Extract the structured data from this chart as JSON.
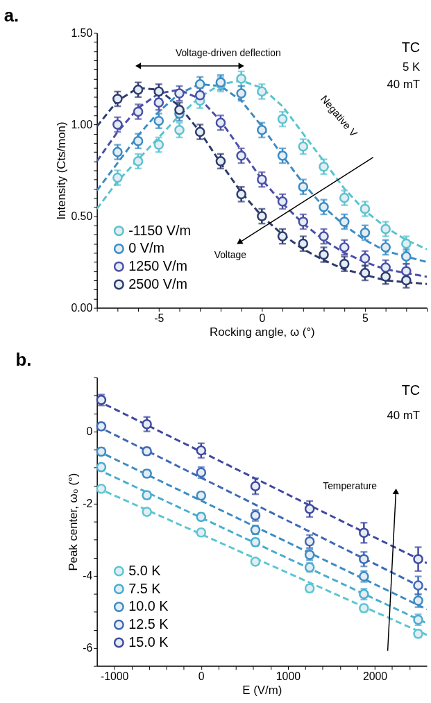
{
  "chart_data": [
    {
      "type": "scatter",
      "title": "a.",
      "xlabel": "Rocking angle, ω (°)",
      "ylabel": "Intensity (Cts/mon)",
      "xlim": [
        -8,
        8
      ],
      "ylim": [
        0,
        1.5
      ],
      "xticks": [
        {
          "value": -8,
          "label": null
        },
        {
          "value": -7,
          "label": null
        },
        {
          "value": -6,
          "label": null
        },
        -5,
        {
          "value": -4,
          "label": null
        },
        {
          "value": -3,
          "label": null
        },
        {
          "value": -2,
          "label": null
        },
        {
          "value": -1,
          "label": null
        },
        0,
        {
          "value": 1,
          "label": null
        },
        {
          "value": 2,
          "label": null
        },
        {
          "value": 3,
          "label": null
        },
        {
          "value": 4,
          "label": null
        },
        5,
        {
          "value": 6,
          "label": null
        },
        {
          "value": 7,
          "label": null
        },
        {
          "value": 8,
          "label": null
        }
      ],
      "yticks": [
        {
          "value": 0,
          "label": "0.00"
        },
        {
          "value": 0.05,
          "label": null
        },
        {
          "value": 0.1,
          "label": null
        },
        {
          "value": 0.15,
          "label": null
        },
        {
          "value": 0.2,
          "label": null
        },
        {
          "value": 0.25,
          "label": null
        },
        {
          "value": 0.3,
          "label": null
        },
        {
          "value": 0.35,
          "label": null
        },
        {
          "value": 0.4,
          "label": null
        },
        {
          "value": 0.45,
          "label": null
        },
        {
          "value": 0.5,
          "label": "0.50"
        },
        {
          "value": 0.55,
          "label": null
        },
        {
          "value": 0.6,
          "label": null
        },
        {
          "value": 0.65,
          "label": null
        },
        {
          "value": 0.7,
          "label": null
        },
        {
          "value": 0.75,
          "label": null
        },
        {
          "value": 0.8,
          "label": null
        },
        {
          "value": 0.85,
          "label": null
        },
        {
          "value": 0.9,
          "label": null
        },
        {
          "value": 0.95,
          "label": null
        },
        {
          "value": 1.0,
          "label": "1.00"
        },
        {
          "value": 1.05,
          "label": null
        },
        {
          "value": 1.1,
          "label": null
        },
        {
          "value": 1.15,
          "label": null
        },
        {
          "value": 1.2,
          "label": null
        },
        {
          "value": 1.25,
          "label": null
        },
        {
          "value": 1.3,
          "label": null
        },
        {
          "value": 1.35,
          "label": null
        },
        {
          "value": 1.4,
          "label": null
        },
        {
          "value": 1.45,
          "label": null
        },
        {
          "value": 1.5,
          "label": "1.50"
        }
      ],
      "grid": false,
      "legend": "bottom left",
      "marker": "circle",
      "annotations": [
        "Voltage-driven deflection",
        "TC",
        "5 K",
        "40 mT",
        "Negative V",
        "Voltage"
      ],
      "series": [
        {
          "name": "-1150 V/m",
          "color": "#5bc3cf",
          "x": [
            -7,
            -6,
            -5,
            -4,
            -3,
            -2,
            -1,
            0,
            1,
            2,
            3,
            4,
            5,
            6,
            7
          ],
          "values": [
            0.71,
            0.8,
            0.89,
            0.97,
            1.13,
            1.22,
            1.25,
            1.18,
            1.03,
            0.88,
            0.77,
            0.6,
            0.54,
            0.43,
            0.35
          ],
          "errors": [
            0.04,
            0.04,
            0.04,
            0.04,
            0.04,
            0.04,
            0.04,
            0.04,
            0.04,
            0.04,
            0.04,
            0.04,
            0.04,
            0.04,
            0.04
          ]
        },
        {
          "name": "0 V/m",
          "color": "#3b8cc4",
          "x": [
            -7,
            -6,
            -5,
            -4,
            -3,
            -2,
            -1,
            0,
            1,
            2,
            3,
            4,
            5,
            6,
            7
          ],
          "values": [
            0.85,
            0.91,
            1.02,
            1.06,
            1.22,
            1.23,
            1.17,
            0.97,
            0.83,
            0.66,
            0.55,
            0.47,
            0.41,
            0.33,
            0.28
          ],
          "errors": [
            0.04,
            0.04,
            0.04,
            0.04,
            0.04,
            0.04,
            0.04,
            0.04,
            0.04,
            0.04,
            0.04,
            0.04,
            0.04,
            0.04,
            0.04
          ]
        },
        {
          "name": "1250 V/m",
          "color": "#4a50a8",
          "x": [
            -7,
            -6,
            -5,
            -4,
            -3,
            -2,
            -1,
            0,
            1,
            2,
            3,
            4,
            5,
            6,
            7
          ],
          "values": [
            1.0,
            1.07,
            1.12,
            1.17,
            1.16,
            1.01,
            0.83,
            0.7,
            0.58,
            0.47,
            0.39,
            0.33,
            0.27,
            0.22,
            0.2
          ],
          "errors": [
            0.04,
            0.04,
            0.04,
            0.04,
            0.04,
            0.04,
            0.04,
            0.04,
            0.04,
            0.04,
            0.04,
            0.04,
            0.04,
            0.04,
            0.04
          ]
        },
        {
          "name": "2500 V/m",
          "color": "#2d3b6e",
          "x": [
            -7,
            -6,
            -5,
            -4,
            -3,
            -2,
            -1,
            0,
            1,
            2,
            3,
            4,
            5,
            6,
            7
          ],
          "values": [
            1.14,
            1.19,
            1.18,
            1.08,
            0.96,
            0.8,
            0.62,
            0.5,
            0.39,
            0.35,
            0.29,
            0.24,
            0.19,
            0.17,
            0.15
          ],
          "errors": [
            0.04,
            0.04,
            0.04,
            0.04,
            0.04,
            0.04,
            0.04,
            0.04,
            0.04,
            0.04,
            0.04,
            0.04,
            0.04,
            0.04,
            0.04
          ]
        },
        {
          "type": "line",
          "marker": "none",
          "line_style": "dashed",
          "color": "#5bc3cf",
          "x": [
            -8,
            -7,
            -6,
            -5,
            -4,
            -3,
            -2,
            -1,
            0,
            1,
            2,
            3,
            4,
            5,
            6,
            7,
            8
          ],
          "values": [
            0.54,
            0.69,
            0.81,
            0.93,
            1.05,
            1.15,
            1.22,
            1.24,
            1.2,
            1.1,
            0.95,
            0.8,
            0.65,
            0.53,
            0.44,
            0.37,
            0.32
          ]
        },
        {
          "type": "line",
          "marker": "none",
          "line_style": "dashed",
          "color": "#3b8cc4",
          "x": [
            -8,
            -7,
            -6,
            -5,
            -4,
            -3,
            -2,
            -1,
            0,
            1,
            2,
            3,
            4,
            5,
            6,
            7,
            8
          ],
          "values": [
            0.64,
            0.79,
            0.94,
            1.07,
            1.17,
            1.22,
            1.21,
            1.13,
            0.99,
            0.83,
            0.68,
            0.55,
            0.45,
            0.37,
            0.31,
            0.28,
            0.25
          ]
        },
        {
          "type": "line",
          "marker": "none",
          "line_style": "dashed",
          "color": "#4a50a8",
          "x": [
            -8,
            -7,
            -6,
            -5,
            -4,
            -3,
            -2,
            -1,
            0,
            1,
            2,
            3,
            4,
            5,
            6,
            7,
            8
          ],
          "values": [
            0.8,
            0.96,
            1.09,
            1.17,
            1.19,
            1.14,
            1.02,
            0.86,
            0.7,
            0.57,
            0.46,
            0.37,
            0.3,
            0.25,
            0.21,
            0.19,
            0.17
          ]
        },
        {
          "type": "line",
          "marker": "none",
          "line_style": "dashed",
          "color": "#2d3b6e",
          "x": [
            -8,
            -7,
            -6,
            -5,
            -4,
            -3,
            -2,
            -1,
            0,
            1,
            2,
            3,
            4,
            5,
            6,
            7,
            8
          ],
          "values": [
            0.99,
            1.13,
            1.2,
            1.19,
            1.1,
            0.96,
            0.79,
            0.63,
            0.5,
            0.4,
            0.32,
            0.26,
            0.21,
            0.18,
            0.15,
            0.14,
            0.13
          ]
        }
      ]
    },
    {
      "type": "scatter",
      "title": "b.",
      "xlabel": "E (V/m)",
      "ylabel": "Peak center, ω₀ (°)",
      "xlim": [
        -1200,
        2600
      ],
      "ylim": [
        -6.5,
        1.5
      ],
      "xticks": [
        -1000,
        {
          "value": -800,
          "label": null
        },
        {
          "value": -600,
          "label": null
        },
        {
          "value": -400,
          "label": null
        },
        {
          "value": -200,
          "label": null
        },
        0,
        {
          "value": 200,
          "label": null
        },
        {
          "value": 400,
          "label": null
        },
        {
          "value": 600,
          "label": null
        },
        {
          "value": 800,
          "label": null
        },
        1000,
        {
          "value": 1200,
          "label": null
        },
        {
          "value": 1400,
          "label": null
        },
        {
          "value": 1600,
          "label": null
        },
        {
          "value": 1800,
          "label": null
        },
        2000,
        {
          "value": 2200,
          "label": null
        },
        {
          "value": 2400,
          "label": null
        }
      ],
      "yticks": [
        {
          "value": -6.5,
          "label": null
        },
        -6,
        {
          "value": -5.5,
          "label": null
        },
        {
          "value": -5,
          "label": null
        },
        {
          "value": -4.5,
          "label": null
        },
        -4,
        {
          "value": -3.5,
          "label": null
        },
        {
          "value": -3,
          "label": null
        },
        {
          "value": -2.5,
          "label": null
        },
        -2,
        {
          "value": -1.5,
          "label": null
        },
        {
          "value": -1,
          "label": null
        },
        {
          "value": -0.5,
          "label": null
        },
        0,
        {
          "value": 0.5,
          "label": null
        },
        {
          "value": 1,
          "label": null
        },
        {
          "value": 1.5,
          "label": null
        }
      ],
      "grid": false,
      "legend": "bottom left",
      "marker": "circle",
      "annotations": [
        "TC",
        "40 mT",
        "Temperature"
      ],
      "series": [
        {
          "name": "5.0 K",
          "color": "#5cc6d0",
          "x": [
            -1150,
            -625,
            0,
            625,
            1250,
            1875,
            2500
          ],
          "values": [
            -1.59,
            -2.23,
            -2.8,
            -3.61,
            -4.35,
            -4.9,
            -5.61
          ],
          "errors": [
            0.08,
            0.08,
            0.08,
            0.08,
            0.1,
            0.1,
            0.1
          ]
        },
        {
          "name": "7.5 K",
          "color": "#48add0",
          "x": [
            -1150,
            -625,
            0,
            625,
            1250,
            1875,
            2500
          ],
          "values": [
            -0.99,
            -1.77,
            -2.37,
            -3.07,
            -3.77,
            -4.51,
            -5.22
          ],
          "errors": [
            0.1,
            0.1,
            0.1,
            0.1,
            0.12,
            0.15,
            0.15
          ]
        },
        {
          "name": "10.0 K",
          "color": "#3d8cc4",
          "x": [
            -1150,
            -625,
            0,
            625,
            1250,
            1875,
            2500
          ],
          "values": [
            -0.56,
            -1.17,
            -1.78,
            -2.73,
            -3.42,
            -4.02,
            -4.69
          ],
          "errors": [
            0.1,
            0.1,
            0.1,
            0.12,
            0.15,
            0.15,
            0.18
          ]
        },
        {
          "name": "12.5 K",
          "color": "#3e69b6",
          "x": [
            -1150,
            -625,
            0,
            625,
            1250,
            1875,
            2500
          ],
          "values": [
            0.14,
            -0.55,
            -1.14,
            -2.33,
            -3.05,
            -3.54,
            -4.27
          ],
          "errors": [
            0.1,
            0.1,
            0.15,
            0.15,
            0.18,
            0.2,
            0.25
          ]
        },
        {
          "name": "15.0 K",
          "color": "#3f49a0",
          "x": [
            -1150,
            -625,
            0,
            625,
            1250,
            1875,
            2500
          ],
          "values": [
            0.87,
            0.2,
            -0.53,
            -1.52,
            -2.15,
            -2.81,
            -3.54
          ],
          "errors": [
            0.15,
            0.2,
            0.2,
            0.22,
            0.22,
            0.28,
            0.33
          ]
        },
        {
          "type": "line",
          "marker": "none",
          "line_style": "dashed",
          "color": "#5cc6d0",
          "x": [
            -1200,
            2600
          ],
          "values": [
            -1.56,
            -5.64
          ]
        },
        {
          "type": "line",
          "marker": "none",
          "line_style": "dashed",
          "color": "#48add0",
          "x": [
            -1200,
            2600
          ],
          "values": [
            -1.04,
            -5.32
          ]
        },
        {
          "type": "line",
          "marker": "none",
          "line_style": "dashed",
          "color": "#3d8cc4",
          "x": [
            -1200,
            2600
          ],
          "values": [
            -0.53,
            -4.93
          ]
        },
        {
          "type": "line",
          "marker": "none",
          "line_style": "dashed",
          "color": "#3e69b6",
          "x": [
            -1200,
            2600
          ],
          "values": [
            0.15,
            -4.39
          ]
        },
        {
          "type": "line",
          "marker": "none",
          "line_style": "dashed",
          "color": "#3f49a0",
          "x": [
            -1200,
            2600
          ],
          "values": [
            0.86,
            -3.65
          ]
        }
      ]
    }
  ]
}
